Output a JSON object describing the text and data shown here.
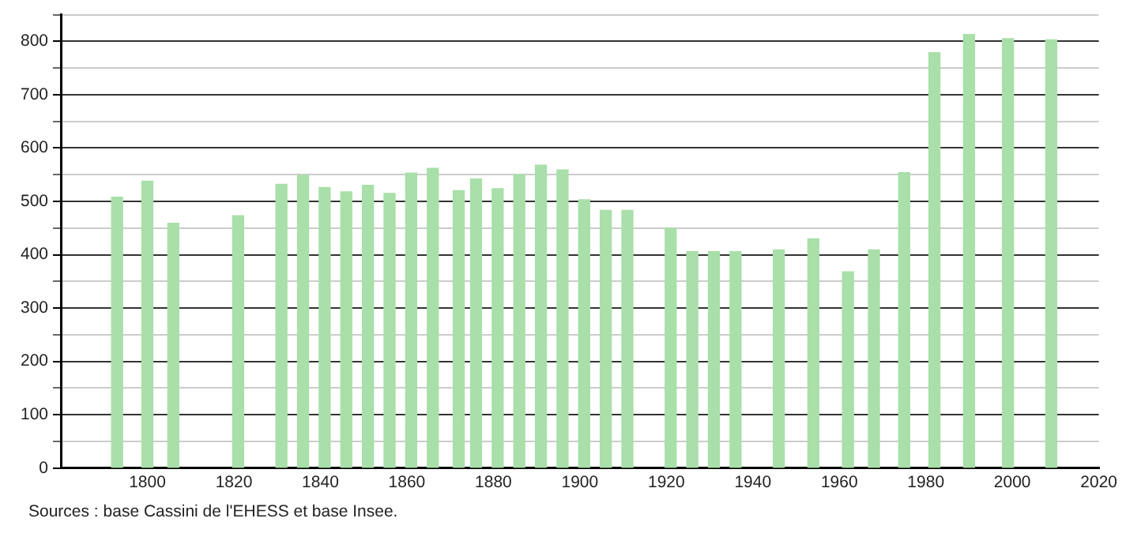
{
  "chart_data": {
    "type": "bar",
    "x": [
      1793,
      1800,
      1806,
      1821,
      1831,
      1836,
      1841,
      1846,
      1851,
      1856,
      1861,
      1866,
      1872,
      1876,
      1881,
      1886,
      1891,
      1896,
      1901,
      1906,
      1911,
      1921,
      1926,
      1931,
      1936,
      1946,
      1954,
      1962,
      1968,
      1975,
      1982,
      1990,
      1999,
      2009
    ],
    "values": [
      508,
      538,
      459,
      473,
      532,
      549,
      526,
      518,
      530,
      515,
      553,
      562,
      520,
      542,
      524,
      550,
      568,
      559,
      503,
      483,
      483,
      450,
      406,
      406,
      406,
      409,
      430,
      368,
      409,
      554,
      779,
      813,
      805,
      803
    ],
    "color": "#a9dfa9",
    "xlim": [
      1780,
      2020
    ],
    "xticks": [
      1800,
      1820,
      1840,
      1860,
      1880,
      1900,
      1920,
      1940,
      1960,
      1980,
      2000,
      2020
    ],
    "ylim": [
      0,
      850
    ],
    "yticks": [
      0,
      {
        "value": 50,
        "label": null
      },
      100,
      {
        "value": 150,
        "label": null
      },
      200,
      {
        "value": 250,
        "label": null
      },
      300,
      {
        "value": 350,
        "label": null
      },
      400,
      {
        "value": 450,
        "label": null
      },
      500,
      {
        "value": 550,
        "label": null
      },
      600,
      {
        "value": 650,
        "label": null
      },
      700,
      {
        "value": 750,
        "label": null
      },
      800,
      {
        "value": 850,
        "label": null
      }
    ],
    "grid": "y",
    "annotations": [
      "Sources : base Cassini de l'EHESS et base Insee."
    ]
  }
}
